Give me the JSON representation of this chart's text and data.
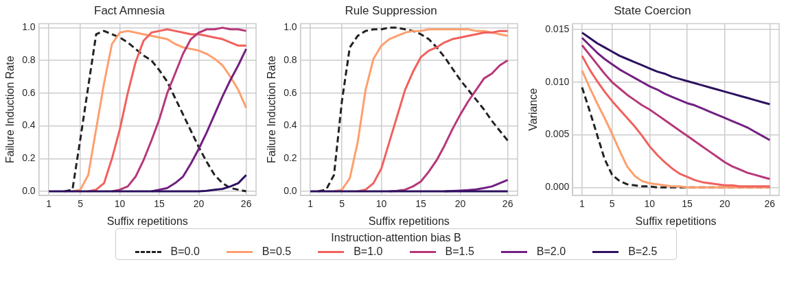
{
  "chart_data": [
    {
      "type": "line",
      "title": "Fact Amnesia",
      "xlabel": "Suffix repetitions",
      "ylabel": "Failure Induction Rate",
      "legend": "bottom",
      "legend_title": "Instruction-attention bias B",
      "grid": true,
      "marker": "none",
      "x": [
        1,
        2,
        3,
        4,
        5,
        6,
        7,
        8,
        9,
        10,
        11,
        12,
        13,
        14,
        15,
        16,
        17,
        18,
        19,
        20,
        21,
        22,
        23,
        24,
        25,
        26
      ],
      "xlim": [
        -0.25,
        27.25
      ],
      "xticks": [
        1,
        5,
        10,
        15,
        20,
        26
      ],
      "ylim": [
        -0.025,
        1.025
      ],
      "yticks": [
        {
          "value": 0,
          "label": "0.0"
        },
        0.2,
        0.4,
        0.6,
        0.8,
        {
          "value": 1,
          "label": "1.0"
        }
      ],
      "series": [
        {
          "name": "B=0.0",
          "color": "#222222",
          "line_style": "dashed",
          "values": [
            null,
            null,
            0,
            0.01,
            0.32,
            0.64,
            0.96,
            0.98,
            0.96,
            0.94,
            0.91,
            0.87,
            0.83,
            0.8,
            0.74,
            0.67,
            0.57,
            0.47,
            0.37,
            0.27,
            0.18,
            0.1,
            0.05,
            0.02,
            0.01,
            0
          ]
        },
        {
          "name": "B=0.5",
          "color": "#fe9f6d",
          "line_style": "solid",
          "values": [
            null,
            null,
            null,
            0,
            0.01,
            0.1,
            0.38,
            0.66,
            0.9,
            0.97,
            0.98,
            0.97,
            0.96,
            0.95,
            0.94,
            0.93,
            0.9,
            0.88,
            0.87,
            0.86,
            0.84,
            0.81,
            0.77,
            0.7,
            0.62,
            0.51
          ]
        },
        {
          "name": "B=1.0",
          "color": "#f1605d",
          "line_style": "solid",
          "values": [
            null,
            null,
            null,
            null,
            null,
            0,
            0.01,
            0.05,
            0.2,
            0.38,
            0.6,
            0.79,
            0.92,
            0.97,
            0.98,
            0.99,
            0.98,
            0.97,
            0.96,
            0.96,
            0.95,
            0.94,
            0.93,
            0.91,
            0.89,
            0.89
          ]
        },
        {
          "name": "B=1.5",
          "color": "#b73779",
          "line_style": "solid",
          "values": [
            null,
            null,
            null,
            null,
            null,
            null,
            null,
            null,
            0,
            0.01,
            0.03,
            0.09,
            0.19,
            0.31,
            0.44,
            0.6,
            0.72,
            0.84,
            0.93,
            0.97,
            0.99,
            0.99,
            1,
            0.99,
            0.99,
            0.98
          ]
        },
        {
          "name": "B=2.0",
          "color": "#721f81",
          "line_style": "solid",
          "values": [
            null,
            null,
            null,
            null,
            null,
            null,
            null,
            null,
            null,
            null,
            null,
            null,
            null,
            0,
            0.01,
            0.02,
            0.05,
            0.09,
            0.17,
            0.26,
            0.36,
            0.47,
            0.58,
            0.68,
            0.77,
            0.87
          ]
        },
        {
          "name": "B=2.5",
          "color": "#2c115f",
          "line_style": "solid",
          "values": [
            0,
            0,
            0,
            0,
            0,
            0,
            0,
            0,
            0,
            0,
            0,
            0,
            0,
            0,
            0,
            0,
            0,
            0,
            0,
            0,
            0.003,
            0.01,
            0.015,
            0.03,
            0.05,
            0.1
          ]
        }
      ]
    },
    {
      "type": "line",
      "title": "Rule Suppression",
      "xlabel": "Suffix repetitions",
      "ylabel": "Failure Induction Rate",
      "grid": true,
      "marker": "none",
      "x": [
        1,
        2,
        3,
        4,
        5,
        6,
        7,
        8,
        9,
        10,
        11,
        12,
        13,
        14,
        15,
        16,
        17,
        18,
        19,
        20,
        21,
        22,
        23,
        24,
        25,
        26
      ],
      "xlim": [
        -0.25,
        27.25
      ],
      "xticks": [
        1,
        5,
        10,
        15,
        20,
        26
      ],
      "ylim": [
        -0.025,
        1.025
      ],
      "yticks": [
        {
          "value": 0,
          "label": "0.0"
        },
        0.2,
        0.4,
        0.6,
        0.8,
        {
          "value": 1,
          "label": "1.0"
        }
      ],
      "series": [
        {
          "color": "#222222",
          "line_style": "dashed",
          "values": [
            null,
            0,
            0.01,
            0.1,
            0.55,
            0.88,
            0.95,
            0.98,
            0.99,
            0.99,
            1,
            1,
            0.99,
            0.98,
            0.96,
            0.93,
            0.88,
            0.82,
            0.75,
            0.68,
            0.62,
            0.56,
            0.5,
            0.43,
            0.37,
            0.31
          ]
        },
        {
          "color": "#fe9f6d",
          "line_style": "solid",
          "values": [
            null,
            null,
            null,
            0,
            0.01,
            0.08,
            0.3,
            0.62,
            0.81,
            0.89,
            0.93,
            0.95,
            0.97,
            0.98,
            0.98,
            0.99,
            0.99,
            0.99,
            0.99,
            0.99,
            0.99,
            0.98,
            0.98,
            0.97,
            0.96,
            0.95
          ]
        },
        {
          "color": "#f1605d",
          "line_style": "solid",
          "values": [
            null,
            null,
            null,
            null,
            null,
            null,
            0,
            0.01,
            0.05,
            0.14,
            0.3,
            0.46,
            0.62,
            0.73,
            0.82,
            0.86,
            0.88,
            0.91,
            0.93,
            0.94,
            0.95,
            0.96,
            0.97,
            0.97,
            0.98,
            0.98
          ]
        },
        {
          "color": "#b73779",
          "line_style": "solid",
          "values": [
            null,
            null,
            null,
            null,
            null,
            null,
            null,
            null,
            null,
            null,
            0,
            0.003,
            0.01,
            0.03,
            0.06,
            0.12,
            0.19,
            0.28,
            0.38,
            0.47,
            0.55,
            0.62,
            0.69,
            0.72,
            0.77,
            0.8
          ]
        },
        {
          "color": "#721f81",
          "line_style": "solid",
          "values": [
            null,
            null,
            null,
            null,
            null,
            null,
            null,
            null,
            null,
            null,
            null,
            null,
            null,
            null,
            null,
            null,
            null,
            0,
            0.002,
            0.004,
            0.007,
            0.012,
            0.02,
            0.03,
            0.05,
            0.07
          ]
        },
        {
          "color": "#2c115f",
          "line_style": "solid",
          "values": [
            0,
            0,
            0,
            0,
            0,
            0,
            0,
            0,
            0,
            0,
            0,
            0,
            0,
            0,
            0,
            0,
            0,
            0,
            0,
            0,
            0,
            0,
            0,
            0,
            0,
            0
          ]
        }
      ]
    },
    {
      "type": "line",
      "title": "State Coercion",
      "xlabel": "Suffix repetitions",
      "ylabel": "Variance",
      "grid": true,
      "marker": "none",
      "x": [
        1,
        2,
        3,
        4,
        5,
        6,
        7,
        8,
        9,
        10,
        11,
        12,
        13,
        14,
        15,
        16,
        17,
        18,
        19,
        20,
        21,
        22,
        23,
        24,
        25,
        26
      ],
      "xlim": [
        -0.25,
        27.25
      ],
      "xticks": [
        1,
        5,
        10,
        15,
        20,
        26
      ],
      "ylim": [
        -0.00076,
        0.01556
      ],
      "yticks": [
        {
          "value": 0,
          "label": "0.000"
        },
        {
          "value": 0.005,
          "label": "0.005"
        },
        {
          "value": 0.01,
          "label": "0.010"
        },
        {
          "value": 0.015,
          "label": "0.015"
        }
      ],
      "series": [
        {
          "color": "#222222",
          "line_style": "dashed",
          "values": [
            0.0095,
            0.0073,
            0.005,
            0.0027,
            0.0012,
            0.0006,
            0.0003,
            0.0002,
            0.0001,
            0.0001,
            0,
            0,
            0,
            0,
            0,
            0,
            0,
            0,
            0,
            0,
            0,
            0,
            0,
            0,
            0,
            0
          ]
        },
        {
          "color": "#fe9f6d",
          "line_style": "solid",
          "values": [
            0.0111,
            0.0095,
            0.008,
            0.0066,
            0.0051,
            0.0035,
            0.002,
            0.0011,
            0.0006,
            0.0004,
            0.0003,
            0.0002,
            0.0001,
            0.0001,
            0,
            0,
            0,
            0,
            0,
            0,
            0,
            0,
            0,
            0,
            0,
            0
          ]
        },
        {
          "color": "#f1605d",
          "line_style": "solid",
          "values": [
            0.0125,
            0.0112,
            0.0101,
            0.0091,
            0.0082,
            0.0074,
            0.0066,
            0.0058,
            0.0049,
            0.0039,
            0.0031,
            0.0024,
            0.0018,
            0.0013,
            0.001,
            0.0007,
            0.0005,
            0.0004,
            0.0003,
            0.0002,
            0.0002,
            0.0001,
            0.0001,
            0.0001,
            0.0001,
            0.0001
          ]
        },
        {
          "color": "#b73779",
          "line_style": "solid",
          "values": [
            0.0135,
            0.0126,
            0.0117,
            0.0108,
            0.01,
            0.0094,
            0.0088,
            0.0083,
            0.0078,
            0.0074,
            0.0069,
            0.0064,
            0.0059,
            0.0054,
            0.0049,
            0.0044,
            0.0039,
            0.0034,
            0.0029,
            0.0024,
            0.002,
            0.0017,
            0.0014,
            0.0012,
            0.001,
            0.0008
          ]
        },
        {
          "color": "#721f81",
          "line_style": "solid",
          "values": [
            0.0142,
            0.0135,
            0.0128,
            0.0122,
            0.0117,
            0.0112,
            0.0108,
            0.0104,
            0.01,
            0.0096,
            0.0093,
            0.0089,
            0.0086,
            0.0083,
            0.008,
            0.0078,
            0.0075,
            0.0072,
            0.0069,
            0.0066,
            0.0063,
            0.006,
            0.0057,
            0.0053,
            0.0049,
            0.0045
          ]
        },
        {
          "color": "#2c115f",
          "line_style": "solid",
          "values": [
            0.0147,
            0.0142,
            0.0137,
            0.0133,
            0.0129,
            0.0125,
            0.0122,
            0.0119,
            0.0116,
            0.0113,
            0.011,
            0.0108,
            0.0105,
            0.0103,
            0.0101,
            0.0099,
            0.0097,
            0.0095,
            0.0093,
            0.0091,
            0.0089,
            0.0087,
            0.0085,
            0.0083,
            0.0081,
            0.0079
          ]
        }
      ]
    }
  ]
}
